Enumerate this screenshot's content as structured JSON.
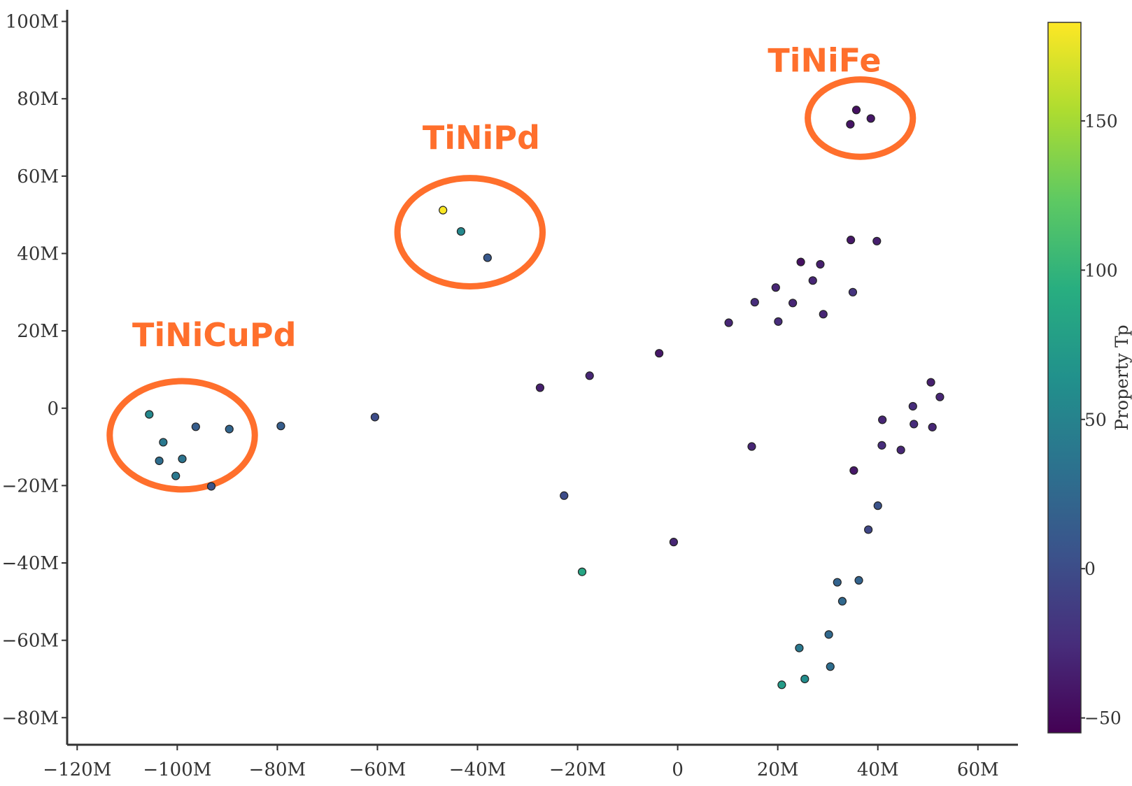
{
  "chart_data": {
    "type": "scatter",
    "xlim": [
      -122,
      68
    ],
    "ylim": [
      -87,
      103
    ],
    "x_ticks": [
      {
        "value": -120,
        "label": "−120M"
      },
      {
        "value": -100,
        "label": "−100M"
      },
      {
        "value": -80,
        "label": "−80M"
      },
      {
        "value": -60,
        "label": "−60M"
      },
      {
        "value": -40,
        "label": "−40M"
      },
      {
        "value": -20,
        "label": "−20M"
      },
      {
        "value": 0,
        "label": "0"
      },
      {
        "value": 20,
        "label": "20M"
      },
      {
        "value": 40,
        "label": "40M"
      },
      {
        "value": 60,
        "label": "60M"
      }
    ],
    "y_ticks": [
      {
        "value": 100,
        "label": "100M"
      },
      {
        "value": 80,
        "label": "80M"
      },
      {
        "value": 60,
        "label": "60M"
      },
      {
        "value": 40,
        "label": "40M"
      },
      {
        "value": 20,
        "label": "20M"
      },
      {
        "value": 0,
        "label": "0"
      },
      {
        "value": -20,
        "label": "−20M"
      },
      {
        "value": -40,
        "label": "−40M"
      },
      {
        "value": -60,
        "label": "−60M"
      },
      {
        "value": -80,
        "label": "−80M"
      }
    ],
    "colorbar": {
      "title": "Property Tp",
      "min": -55,
      "max": 183,
      "colormap": "viridis",
      "ticks": [
        {
          "value": 150,
          "label": "150"
        },
        {
          "value": 100,
          "label": "100"
        },
        {
          "value": 50,
          "label": "50"
        },
        {
          "value": 0,
          "label": "0"
        },
        {
          "value": -50,
          "label": "−50"
        }
      ]
    },
    "annotations": [
      {
        "text": "TiNiFe",
        "color": "#FF6F2C",
        "cx": 36.5,
        "cy": 75,
        "rx": 10.5,
        "ry": 10,
        "tx": 18,
        "ty": 87
      },
      {
        "text": "TiNiPd",
        "color": "#FF6F2C",
        "cx": -41.5,
        "cy": 45.5,
        "rx": 14.5,
        "ry": 14,
        "tx": -51,
        "ty": 67
      },
      {
        "text": "TiNiCuPd",
        "color": "#FF6F2C",
        "cx": -99,
        "cy": -7,
        "rx": 14.5,
        "ry": 14,
        "tx": -109,
        "ty": 16
      }
    ],
    "points": [
      {
        "x": 35.7,
        "y": 77.1,
        "c": -45
      },
      {
        "x": 34.5,
        "y": 73.4,
        "c": -42
      },
      {
        "x": 38.6,
        "y": 74.9,
        "c": -40
      },
      {
        "x": -46.9,
        "y": 51.2,
        "c": 182
      },
      {
        "x": -43.3,
        "y": 45.7,
        "c": 55
      },
      {
        "x": -38.0,
        "y": 38.9,
        "c": 10
      },
      {
        "x": -105.6,
        "y": -1.6,
        "c": 55
      },
      {
        "x": -102.8,
        "y": -8.8,
        "c": 40
      },
      {
        "x": -96.3,
        "y": -4.8,
        "c": 15
      },
      {
        "x": -89.6,
        "y": -5.4,
        "c": 22
      },
      {
        "x": -103.6,
        "y": -13.6,
        "c": 30
      },
      {
        "x": -99.0,
        "y": -13.1,
        "c": 35
      },
      {
        "x": -100.3,
        "y": -17.5,
        "c": 40
      },
      {
        "x": -93.2,
        "y": -20.2,
        "c": 5
      },
      {
        "x": -79.3,
        "y": -4.6,
        "c": 15
      },
      {
        "x": -60.5,
        "y": -2.3,
        "c": 0
      },
      {
        "x": -27.5,
        "y": 5.3,
        "c": -35
      },
      {
        "x": -17.6,
        "y": 8.4,
        "c": -30
      },
      {
        "x": -3.7,
        "y": 14.2,
        "c": -40
      },
      {
        "x": 10.2,
        "y": 22.1,
        "c": -30
      },
      {
        "x": 15.4,
        "y": 27.4,
        "c": -25
      },
      {
        "x": 19.6,
        "y": 31.2,
        "c": -30
      },
      {
        "x": 20.1,
        "y": 22.4,
        "c": -25
      },
      {
        "x": 23.0,
        "y": 27.2,
        "c": -30
      },
      {
        "x": 24.6,
        "y": 37.8,
        "c": -45
      },
      {
        "x": 27.0,
        "y": 33.0,
        "c": -30
      },
      {
        "x": 28.5,
        "y": 37.2,
        "c": -35
      },
      {
        "x": 29.1,
        "y": 24.3,
        "c": -30
      },
      {
        "x": 34.6,
        "y": 43.5,
        "c": -40
      },
      {
        "x": 35.0,
        "y": 30.0,
        "c": -20
      },
      {
        "x": 39.8,
        "y": 43.2,
        "c": -35
      },
      {
        "x": 50.6,
        "y": 6.7,
        "c": -35
      },
      {
        "x": 52.4,
        "y": 2.9,
        "c": -30
      },
      {
        "x": 47.0,
        "y": 0.5,
        "c": -25
      },
      {
        "x": 40.9,
        "y": -3.0,
        "c": -30
      },
      {
        "x": 47.2,
        "y": -4.1,
        "c": -25
      },
      {
        "x": 50.9,
        "y": -4.9,
        "c": -30
      },
      {
        "x": 40.8,
        "y": -9.6,
        "c": -25
      },
      {
        "x": 44.6,
        "y": -10.8,
        "c": -30
      },
      {
        "x": 14.8,
        "y": -9.9,
        "c": -30
      },
      {
        "x": 35.2,
        "y": -16.1,
        "c": -40
      },
      {
        "x": 40.0,
        "y": -25.2,
        "c": 5
      },
      {
        "x": 38.1,
        "y": -31.4,
        "c": -5
      },
      {
        "x": -22.7,
        "y": -22.6,
        "c": 0
      },
      {
        "x": -0.8,
        "y": -34.6,
        "c": -30
      },
      {
        "x": -19.1,
        "y": -42.3,
        "c": 85
      },
      {
        "x": 31.9,
        "y": -45.0,
        "c": 20
      },
      {
        "x": 36.2,
        "y": -44.5,
        "c": 20
      },
      {
        "x": 32.9,
        "y": -49.9,
        "c": 25
      },
      {
        "x": 30.2,
        "y": -58.5,
        "c": 25
      },
      {
        "x": 24.3,
        "y": -62.0,
        "c": 40
      },
      {
        "x": 30.5,
        "y": -66.8,
        "c": 30
      },
      {
        "x": 25.4,
        "y": -70.0,
        "c": 60
      },
      {
        "x": 20.8,
        "y": -71.5,
        "c": 75
      }
    ]
  }
}
